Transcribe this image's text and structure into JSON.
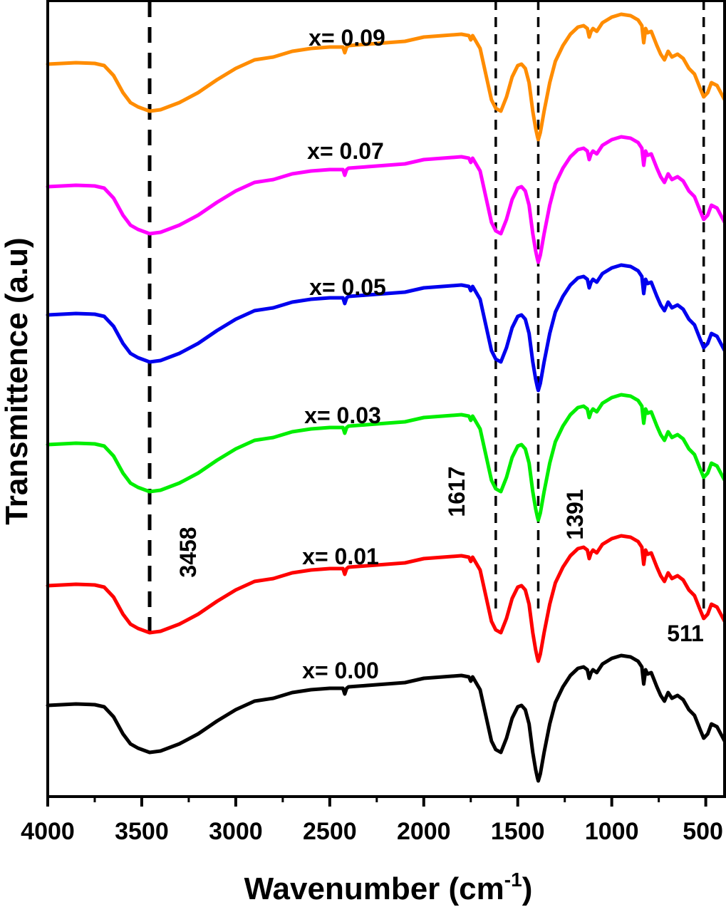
{
  "chart_data": {
    "type": "line",
    "xlabel": "Wavenumber (cm",
    "xlabel_sup": "-1",
    "xlabel_close": ")",
    "ylabel": "Transmittence (a.u)",
    "xlim": [
      4000,
      400
    ],
    "x_reversed": true,
    "xticks": [
      4000,
      3500,
      3000,
      2500,
      2000,
      1500,
      1000,
      500
    ],
    "y_ticks_shown": false,
    "series": [
      {
        "name": "x= 0.00",
        "color": "#000000"
      },
      {
        "name": "x= 0.01",
        "color": "#ff0000"
      },
      {
        "name": "x= 0.03",
        "color": "#00ee00"
      },
      {
        "name": "x= 0.05",
        "color": "#0000ee"
      },
      {
        "name": "x= 0.07",
        "color": "#ff00ff"
      },
      {
        "name": "x= 0.09",
        "color": "#ff8c00"
      }
    ],
    "profile": {
      "x": [
        4000,
        3850,
        3750,
        3700,
        3650,
        3600,
        3560,
        3520,
        3458,
        3400,
        3300,
        3200,
        3100,
        3000,
        2900,
        2800,
        2700,
        2600,
        2500,
        2430,
        2420,
        2410,
        2400,
        2300,
        2200,
        2100,
        2000,
        1900,
        1800,
        1760,
        1750,
        1740,
        1700,
        1660,
        1640,
        1617,
        1590,
        1560,
        1530,
        1500,
        1480,
        1460,
        1440,
        1420,
        1405,
        1395,
        1391,
        1380,
        1360,
        1330,
        1300,
        1260,
        1220,
        1180,
        1150,
        1130,
        1120,
        1110,
        1100,
        1080,
        1050,
        1000,
        950,
        900,
        860,
        840,
        830,
        820,
        810,
        790,
        760,
        740,
        720,
        700,
        680,
        650,
        620,
        590,
        560,
        530,
        511,
        490,
        470,
        440,
        420,
        400
      ],
      "y": [
        0.53,
        0.54,
        0.535,
        0.52,
        0.45,
        0.33,
        0.26,
        0.23,
        0.2,
        0.21,
        0.26,
        0.33,
        0.42,
        0.5,
        0.56,
        0.58,
        0.62,
        0.64,
        0.65,
        0.65,
        0.61,
        0.65,
        0.66,
        0.67,
        0.68,
        0.69,
        0.72,
        0.73,
        0.74,
        0.73,
        0.7,
        0.73,
        0.64,
        0.4,
        0.28,
        0.22,
        0.2,
        0.3,
        0.44,
        0.52,
        0.53,
        0.5,
        0.4,
        0.2,
        0.08,
        0.02,
        0.0,
        0.05,
        0.2,
        0.4,
        0.55,
        0.66,
        0.74,
        0.79,
        0.8,
        0.78,
        0.72,
        0.76,
        0.78,
        0.76,
        0.82,
        0.86,
        0.88,
        0.87,
        0.84,
        0.8,
        0.68,
        0.78,
        0.75,
        0.76,
        0.66,
        0.6,
        0.56,
        0.62,
        0.58,
        0.6,
        0.57,
        0.5,
        0.46,
        0.36,
        0.3,
        0.33,
        0.4,
        0.38,
        0.33,
        0.28
      ]
    },
    "reference_lines": [
      3458,
      1617,
      1391,
      511
    ],
    "peak_labels": [
      {
        "text": "3458",
        "x": 3458
      },
      {
        "text": "1617",
        "x": 1617
      },
      {
        "text": "1391",
        "x": 1391
      },
      {
        "text": "511",
        "x": 511
      }
    ]
  }
}
